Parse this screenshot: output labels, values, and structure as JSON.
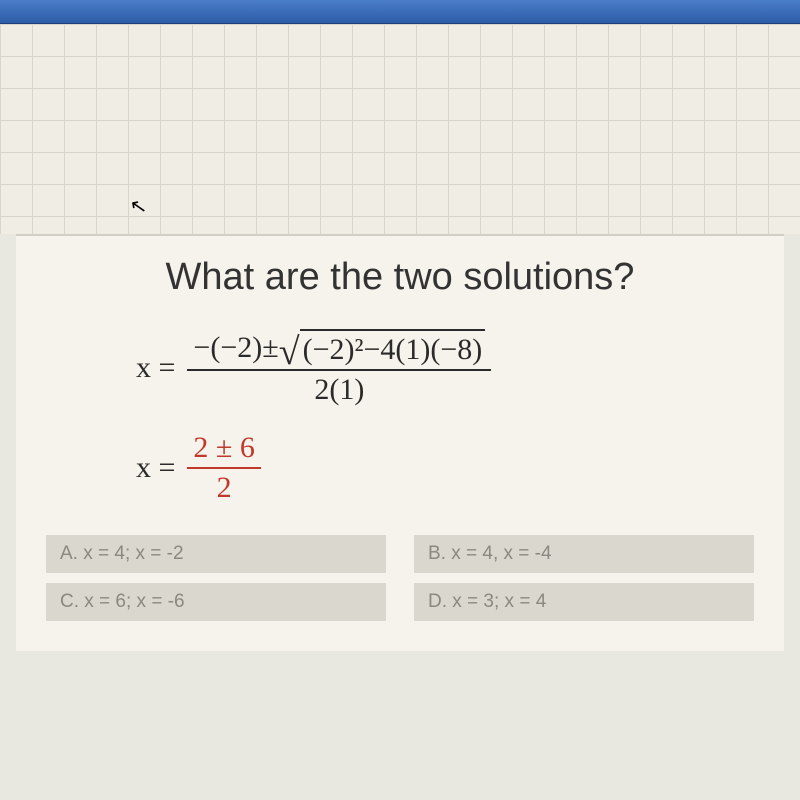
{
  "question": {
    "title": "What are the two solutions?",
    "equation1": {
      "lhs": "x =",
      "numerator_prefix": "−(−2)±",
      "radicand": "(−2)²−4(1)(−8)",
      "denominator": "2(1)"
    },
    "equation2": {
      "lhs": "x =",
      "numerator": "2 ± 6",
      "denominator": "2"
    }
  },
  "answers": [
    {
      "label": "A.",
      "text": "x = 4; x = -2"
    },
    {
      "label": "B.",
      "text": "x = 4, x = -4"
    },
    {
      "label": "C.",
      "text": "x = 6; x = -6"
    },
    {
      "label": "D.",
      "text": "x = 3; x = 4"
    }
  ],
  "colors": {
    "titlebar_top": "#4a7ec7",
    "titlebar_bottom": "#2e5ca8",
    "grid_bg": "#f0ede5",
    "grid_line": "#d8d5cd",
    "panel_bg": "#f5f3eb",
    "answer_bg": "#d9d7ce",
    "answer_text": "#8a8880",
    "equation_text": "#2a2a2a",
    "highlight_red": "#c0392b"
  }
}
